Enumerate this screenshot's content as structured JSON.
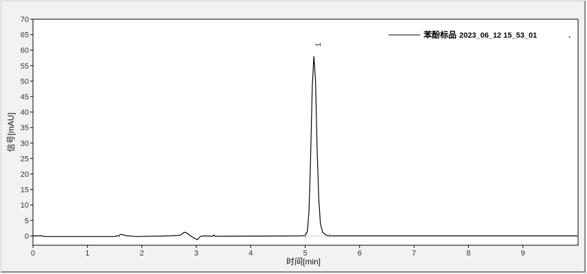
{
  "chart_data": {
    "type": "line",
    "title": "",
    "xlabel": "时间[min]",
    "ylabel": "信号[mAU]",
    "xlim": [
      0,
      10
    ],
    "ylim": [
      -3,
      70
    ],
    "xticks": [
      0,
      1,
      2,
      3,
      4,
      5,
      6,
      7,
      8,
      9
    ],
    "yticks": [
      0,
      5,
      10,
      15,
      20,
      25,
      30,
      35,
      40,
      45,
      50,
      55,
      60,
      65,
      70
    ],
    "grid": false,
    "legend_position": "top-right",
    "legend": {
      "label": "苯酚标品",
      "sample": "2023_06_12 15_53_01",
      "suffix": "."
    },
    "peak_labels": [
      {
        "label": "1",
        "x": 5.16
      }
    ],
    "line_color": "#000000",
    "series": [
      {
        "x": [
          0,
          0.18,
          0.2,
          1.5,
          1.55,
          1.58,
          1.6,
          1.65,
          1.7,
          1.9,
          2.5,
          2.7,
          2.78,
          2.82,
          2.88,
          2.95,
          3.02,
          3.08,
          3.15,
          3.3,
          3.32,
          3.35,
          4.9,
          5.0,
          5.04,
          5.07,
          5.1,
          5.13,
          5.16,
          5.19,
          5.22,
          5.25,
          5.28,
          5.32,
          5.38,
          5.45,
          5.6,
          10
        ],
        "y": [
          0,
          0,
          -0.2,
          -0.2,
          0.1,
          -0.1,
          0.5,
          0.4,
          0.1,
          -0.2,
          0,
          0.2,
          1.2,
          1.0,
          0.2,
          -0.6,
          -1.2,
          -0.1,
          0,
          -0.1,
          0.3,
          -0.1,
          0,
          0.1,
          1.5,
          8,
          25,
          48,
          58,
          50,
          28,
          12,
          4,
          1.2,
          0.3,
          0,
          0,
          0
        ]
      }
    ],
    "baseline": {
      "x": [
        5.0,
        5.45
      ],
      "y": [
        -0.1,
        -0.1
      ]
    }
  }
}
